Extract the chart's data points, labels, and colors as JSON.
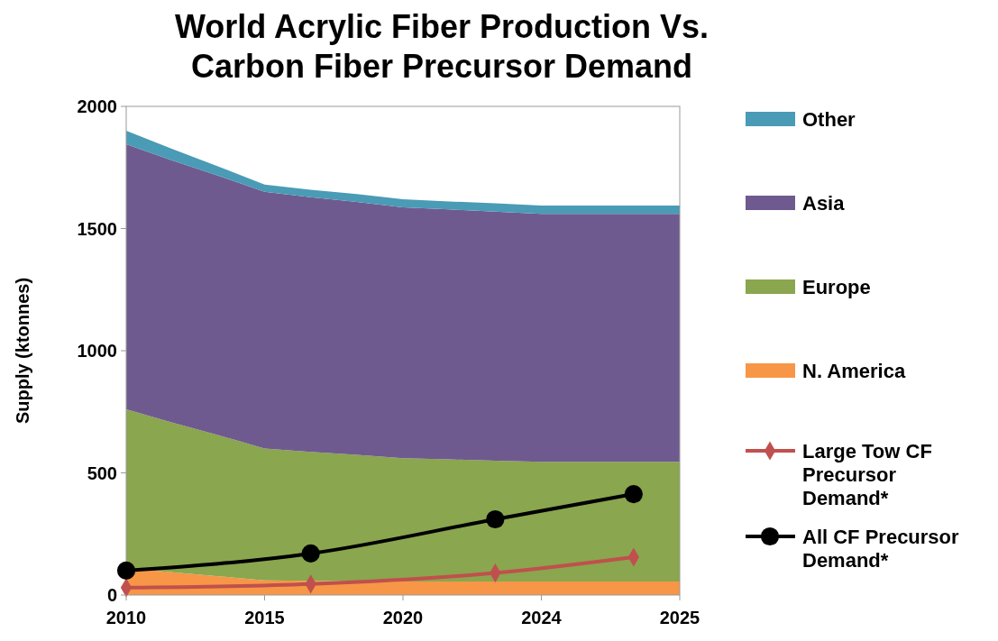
{
  "chart_data": {
    "type": "area",
    "title": "World Acrylic Fiber Production Vs. Carbon Fiber Precursor Demand",
    "ylabel": "Supply (ktonnes)",
    "stacked": true,
    "categories": [
      "2010",
      null,
      null,
      "2015",
      null,
      null,
      "2020",
      null,
      null,
      "2024",
      null,
      null,
      "2025"
    ],
    "ylim": [
      0,
      2000
    ],
    "yticks": [
      0,
      500,
      1000,
      1500,
      2000
    ],
    "grid": false,
    "legend": "right",
    "series": [
      {
        "name": "N. America",
        "color": "#f79646",
        "values": [
          110,
          93,
          77,
          60,
          58,
          57,
          55,
          55,
          55,
          55,
          55,
          55,
          55
        ]
      },
      {
        "name": "Europe",
        "color": "#8aa64e",
        "values": [
          650,
          613,
          577,
          540,
          528,
          517,
          505,
          500,
          495,
          490,
          490,
          490,
          490
        ]
      },
      {
        "name": "Asia",
        "color": "#6f5a8f",
        "values": [
          1085,
          1073,
          1062,
          1050,
          1042,
          1035,
          1027,
          1023,
          1019,
          1015,
          1015,
          1015,
          1015
        ]
      },
      {
        "name": "Other",
        "color": "#4a9bb5",
        "values": [
          55,
          47,
          38,
          30,
          31,
          32,
          33,
          33,
          34,
          34,
          34,
          34,
          34
        ]
      },
      {
        "name": "Large Tow CF Precursor Demand*",
        "type": "line",
        "color": "#c0504d",
        "marker": "diamond",
        "values": [
          30,
          null,
          null,
          null,
          45,
          null,
          null,
          null,
          90,
          null,
          null,
          155,
          null
        ]
      },
      {
        "name": "All CF Precursor Demand*",
        "type": "line",
        "color": "#000000",
        "marker": "circle",
        "values": [
          100,
          null,
          null,
          null,
          170,
          null,
          null,
          null,
          310,
          null,
          null,
          413,
          null
        ]
      }
    ]
  }
}
